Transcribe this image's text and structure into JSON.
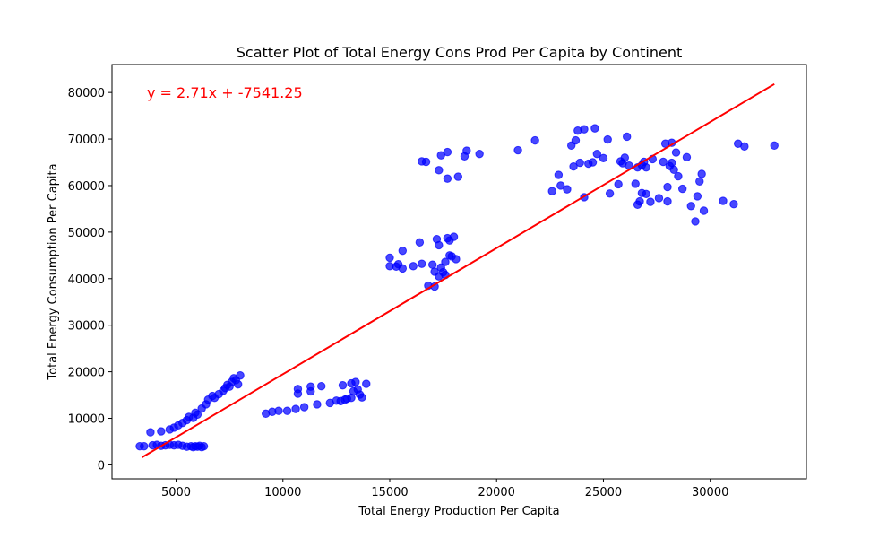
{
  "chart_data": {
    "type": "scatter",
    "title": "Scatter Plot of Total Energy Cons Prod Per Capita by Continent",
    "xlabel": "Total Energy Production Per Capita",
    "ylabel": "Total Energy Consumption Per Capita",
    "xlim": [
      2000,
      34500
    ],
    "ylim": [
      -3000,
      86000
    ],
    "xticks": [
      5000,
      10000,
      15000,
      20000,
      25000,
      30000
    ],
    "xtick_labels": [
      "5000",
      "10000",
      "15000",
      "20000",
      "25000",
      "30000"
    ],
    "yticks": [
      0,
      10000,
      20000,
      30000,
      40000,
      50000,
      60000,
      70000,
      80000
    ],
    "ytick_labels": [
      "0",
      "10000",
      "20000",
      "30000",
      "40000",
      "50000",
      "60000",
      "70000",
      "80000"
    ],
    "grid": false,
    "point_color": "#0000ff",
    "line_color": "#ff0000",
    "annotation": "y = 2.71x + -7541.25",
    "trendline": {
      "x": [
        3400,
        33000
      ],
      "y": [
        1600,
        81800
      ]
    },
    "series": [
      {
        "points": [
          [
            3300,
            4000
          ],
          [
            3500,
            4000
          ],
          [
            3900,
            4200
          ],
          [
            4100,
            4300
          ],
          [
            4300,
            4100
          ],
          [
            4500,
            4200
          ],
          [
            4700,
            4300
          ],
          [
            4900,
            4200
          ],
          [
            5100,
            4300
          ],
          [
            5300,
            4100
          ],
          [
            5500,
            3900
          ],
          [
            5700,
            4000
          ],
          [
            5800,
            3800
          ],
          [
            5900,
            4000
          ],
          [
            6000,
            3900
          ],
          [
            6100,
            4100
          ],
          [
            6200,
            3800
          ],
          [
            6300,
            4000
          ],
          [
            3800,
            7000
          ],
          [
            4300,
            7200
          ],
          [
            4700,
            7600
          ],
          [
            4900,
            8000
          ],
          [
            5100,
            8500
          ],
          [
            5300,
            9000
          ],
          [
            5500,
            9600
          ],
          [
            5600,
            10300
          ],
          [
            5800,
            10100
          ],
          [
            5900,
            11200
          ],
          [
            6000,
            10800
          ],
          [
            6200,
            12100
          ],
          [
            6400,
            13000
          ],
          [
            6500,
            14000
          ],
          [
            6700,
            14800
          ],
          [
            6800,
            14400
          ],
          [
            7000,
            15200
          ],
          [
            7200,
            15900
          ],
          [
            7300,
            16500
          ],
          [
            7400,
            17200
          ],
          [
            7500,
            16800
          ],
          [
            7600,
            17800
          ],
          [
            7700,
            18600
          ],
          [
            7800,
            18200
          ],
          [
            7900,
            17300
          ],
          [
            8000,
            19200
          ],
          [
            9200,
            11000
          ],
          [
            9500,
            11400
          ],
          [
            9800,
            11600
          ],
          [
            10200,
            11600
          ],
          [
            10600,
            12000
          ],
          [
            10700,
            16300
          ],
          [
            10700,
            15300
          ],
          [
            11000,
            12400
          ],
          [
            11300,
            16800
          ],
          [
            11300,
            15800
          ],
          [
            11600,
            13000
          ],
          [
            11800,
            16900
          ],
          [
            12200,
            13300
          ],
          [
            12500,
            13800
          ],
          [
            12700,
            13700
          ],
          [
            12800,
            17100
          ],
          [
            12900,
            14000
          ],
          [
            13000,
            14200
          ],
          [
            13200,
            14400
          ],
          [
            13200,
            17500
          ],
          [
            13300,
            15800
          ],
          [
            13400,
            17800
          ],
          [
            13500,
            16200
          ],
          [
            13600,
            15100
          ],
          [
            13700,
            14500
          ],
          [
            13900,
            17400
          ],
          [
            15000,
            44500
          ],
          [
            15000,
            42700
          ],
          [
            15300,
            42600
          ],
          [
            15400,
            43100
          ],
          [
            15600,
            42200
          ],
          [
            15600,
            46000
          ],
          [
            16100,
            42700
          ],
          [
            16400,
            47800
          ],
          [
            16500,
            43200
          ],
          [
            16800,
            38500
          ],
          [
            17000,
            43000
          ],
          [
            17100,
            38300
          ],
          [
            17200,
            48500
          ],
          [
            17300,
            47200
          ],
          [
            17400,
            42400
          ],
          [
            17500,
            41400
          ],
          [
            17600,
            43600
          ],
          [
            17700,
            48700
          ],
          [
            17800,
            48200
          ],
          [
            17900,
            44800
          ],
          [
            18000,
            49000
          ],
          [
            18100,
            44200
          ],
          [
            17100,
            41500
          ],
          [
            17300,
            40500
          ],
          [
            17600,
            40800
          ],
          [
            17800,
            45000
          ],
          [
            16500,
            65200
          ],
          [
            16700,
            65100
          ],
          [
            17300,
            63300
          ],
          [
            17400,
            66500
          ],
          [
            17700,
            61500
          ],
          [
            17700,
            67200
          ],
          [
            18200,
            61900
          ],
          [
            18500,
            66300
          ],
          [
            18600,
            67500
          ],
          [
            19200,
            66800
          ],
          [
            21000,
            67600
          ],
          [
            21800,
            69700
          ],
          [
            22600,
            58800
          ],
          [
            22900,
            62300
          ],
          [
            23000,
            60000
          ],
          [
            23300,
            59200
          ],
          [
            23500,
            68600
          ],
          [
            23600,
            64100
          ],
          [
            23700,
            69700
          ],
          [
            23800,
            71800
          ],
          [
            23900,
            64900
          ],
          [
            24100,
            72100
          ],
          [
            24100,
            57500
          ],
          [
            24300,
            64700
          ],
          [
            24500,
            65000
          ],
          [
            24600,
            72300
          ],
          [
            24700,
            66800
          ],
          [
            25000,
            65900
          ],
          [
            25200,
            69900
          ],
          [
            25300,
            58300
          ],
          [
            25700,
            60300
          ],
          [
            25800,
            65200
          ],
          [
            25900,
            64800
          ],
          [
            26000,
            66000
          ],
          [
            26100,
            70500
          ],
          [
            26200,
            64300
          ],
          [
            26500,
            60400
          ],
          [
            26600,
            63900
          ],
          [
            26600,
            55900
          ],
          [
            26700,
            56600
          ],
          [
            26800,
            64400
          ],
          [
            26800,
            58400
          ],
          [
            26900,
            65100
          ],
          [
            27000,
            63900
          ],
          [
            27000,
            58200
          ],
          [
            27200,
            56500
          ],
          [
            27300,
            65700
          ],
          [
            27600,
            57300
          ],
          [
            27800,
            65100
          ],
          [
            27900,
            69000
          ],
          [
            28000,
            59700
          ],
          [
            28000,
            56600
          ],
          [
            28100,
            64200
          ],
          [
            28200,
            64900
          ],
          [
            28200,
            69200
          ],
          [
            28300,
            63400
          ],
          [
            28400,
            67100
          ],
          [
            28500,
            62000
          ],
          [
            28700,
            59300
          ],
          [
            28900,
            66100
          ],
          [
            29100,
            55600
          ],
          [
            29300,
            52300
          ],
          [
            29400,
            57700
          ],
          [
            29500,
            60900
          ],
          [
            29600,
            62500
          ],
          [
            29700,
            54600
          ],
          [
            30600,
            56700
          ],
          [
            31100,
            56000
          ],
          [
            31300,
            69000
          ],
          [
            31600,
            68400
          ],
          [
            33000,
            68600
          ]
        ]
      }
    ]
  }
}
